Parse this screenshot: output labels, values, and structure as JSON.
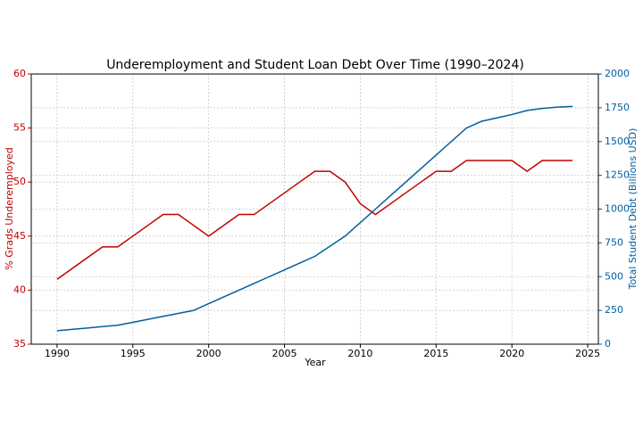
{
  "chart_data": {
    "type": "line",
    "title": "Underemployment and Student Loan Debt Over Time (1990–2024)",
    "x_label": "Year",
    "y_label": "% Grads Underemployed",
    "y2_label": "Total Student Debt (Billions USD)",
    "x": [
      1990,
      1991,
      1992,
      1993,
      1994,
      1995,
      1996,
      1997,
      1998,
      1999,
      2000,
      2001,
      2002,
      2003,
      2004,
      2005,
      2006,
      2007,
      2008,
      2009,
      2010,
      2011,
      2012,
      2013,
      2014,
      2015,
      2016,
      2017,
      2018,
      2019,
      2020,
      2021,
      2022,
      2023,
      2024
    ],
    "series": [
      {
        "name": "% Grads Underemployed",
        "color": "#c00000",
        "axis": "y",
        "values": [
          41,
          42,
          43,
          44,
          44,
          45,
          46,
          47,
          47,
          46,
          45,
          46,
          47,
          47,
          48,
          49,
          50,
          51,
          51,
          50,
          48,
          47,
          48,
          49,
          50,
          51,
          51,
          52,
          52,
          52,
          52,
          51,
          52,
          52,
          52
        ]
      },
      {
        "name": "Total Student Debt (Billions USD)",
        "color": "#005f9e",
        "axis": "y2",
        "values": [
          100,
          110,
          120,
          130,
          140,
          162,
          184,
          206,
          228,
          250,
          300,
          350,
          400,
          450,
          500,
          550,
          600,
          650,
          725,
          800,
          900,
          1000,
          1100,
          1200,
          1300,
          1400,
          1500,
          1600,
          1650,
          1675,
          1700,
          1730,
          1745,
          1755,
          1760
        ]
      }
    ],
    "xlim": [
      1988.3,
      2025.7
    ],
    "xticks": [
      1990,
      1995,
      2000,
      2005,
      2010,
      2015,
      2020,
      2025
    ],
    "ylim": [
      35,
      60
    ],
    "yticks": [
      35,
      40,
      45,
      50,
      55,
      60
    ],
    "y2lim": [
      0,
      2000
    ],
    "y2ticks": [
      0,
      250,
      500,
      750,
      1000,
      1250,
      1500,
      1750,
      2000
    ],
    "grid": true
  }
}
